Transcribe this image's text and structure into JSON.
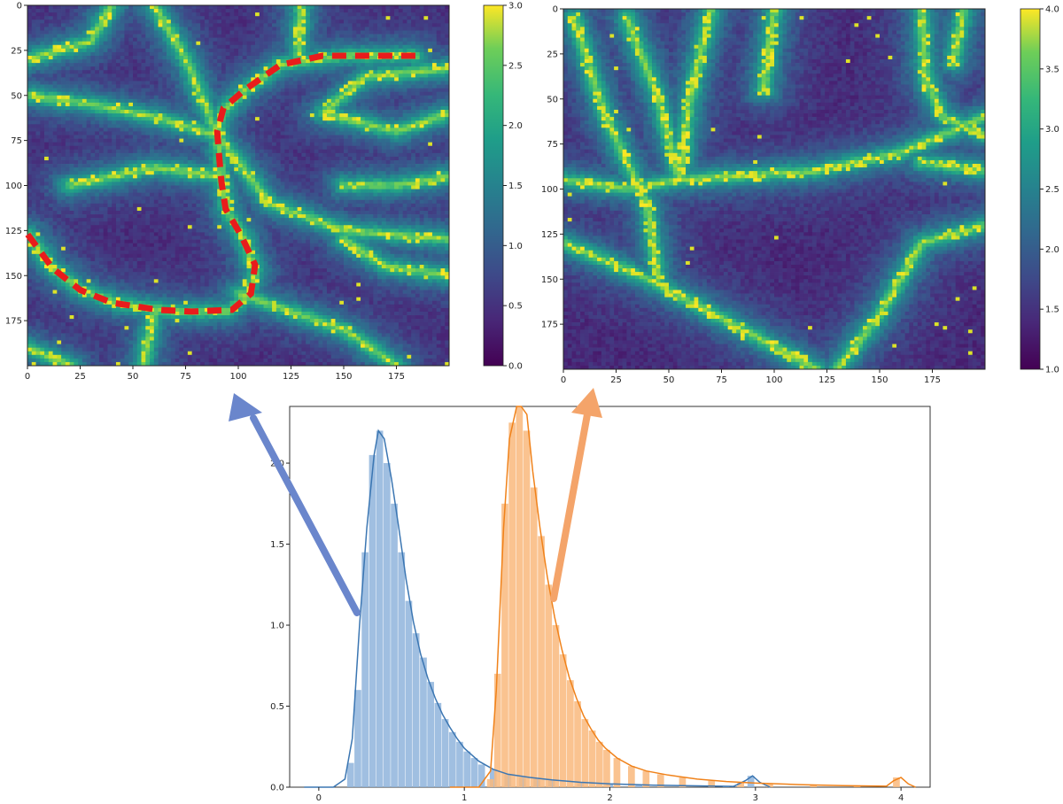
{
  "colors": {
    "blue_hist": "#8fb4dc",
    "blue_line": "#3b76b2",
    "orange_hist": "#f9b97c",
    "orange_line": "#f0821a",
    "arrow_blue": "#6a86cc",
    "arrow_orange": "#f4a46a",
    "path_red": "#e81c1c",
    "viridis_low": "#440154",
    "viridis_mid": "#21918c",
    "viridis_high": "#fde725"
  },
  "chart_data": [
    {
      "type": "heatmap",
      "colormap": "viridis",
      "x_ticks": [
        "0",
        "25",
        "50",
        "75",
        "100",
        "125",
        "150",
        "175"
      ],
      "y_ticks": [
        "0",
        "25",
        "50",
        "75",
        "100",
        "125",
        "150",
        "175"
      ],
      "xlim": [
        0,
        200
      ],
      "ylim": [
        0,
        200
      ],
      "colorbar": {
        "min": 0.0,
        "max": 3.0,
        "ticks": [
          "0.0",
          "0.5",
          "1.0",
          "1.5",
          "2.0",
          "2.5",
          "3.0"
        ]
      },
      "annotation": {
        "style": "red dashed path",
        "points": [
          [
            184,
            28
          ],
          [
            160,
            28
          ],
          [
            140,
            28
          ],
          [
            120,
            33
          ],
          [
            103,
            47
          ],
          [
            93,
            57
          ],
          [
            90,
            70
          ],
          [
            91,
            85
          ],
          [
            92,
            98
          ],
          [
            94,
            113
          ],
          [
            101,
            127
          ],
          [
            108,
            144
          ],
          [
            106,
            160
          ],
          [
            97,
            169
          ],
          [
            78,
            170
          ],
          [
            62,
            169
          ],
          [
            40,
            165
          ],
          [
            25,
            158
          ],
          [
            12,
            146
          ],
          [
            0,
            127
          ]
        ]
      }
    },
    {
      "type": "heatmap",
      "colormap": "viridis",
      "x_ticks": [
        "0",
        "25",
        "50",
        "75",
        "100",
        "125",
        "150",
        "175"
      ],
      "y_ticks": [
        "0",
        "25",
        "50",
        "75",
        "100",
        "125",
        "150",
        "175"
      ],
      "xlim": [
        0,
        200
      ],
      "ylim": [
        0,
        200
      ],
      "colorbar": {
        "min": 1.0,
        "max": 4.0,
        "ticks": [
          "1.0",
          "1.5",
          "2.0",
          "2.5",
          "3.0",
          "3.5",
          "4.0"
        ]
      }
    },
    {
      "type": "area",
      "subtype": "histogram with density curve",
      "x_ticks": [
        "0",
        "1",
        "2",
        "3",
        "4"
      ],
      "y_ticks": [
        "0.0",
        "0.5",
        "1.0",
        "1.5",
        "2.0"
      ],
      "xlim": [
        -0.2,
        4.2
      ],
      "ylim": [
        0,
        2.35
      ],
      "series": [
        {
          "color": "blue",
          "bins": [
            [
              0.22,
              0.15
            ],
            [
              0.27,
              0.6
            ],
            [
              0.32,
              1.45
            ],
            [
              0.37,
              2.05
            ],
            [
              0.42,
              2.2
            ],
            [
              0.47,
              2.0
            ],
            [
              0.52,
              1.75
            ],
            [
              0.57,
              1.45
            ],
            [
              0.62,
              1.15
            ],
            [
              0.67,
              0.95
            ],
            [
              0.72,
              0.8
            ],
            [
              0.77,
              0.65
            ],
            [
              0.82,
              0.52
            ],
            [
              0.87,
              0.42
            ],
            [
              0.92,
              0.34
            ],
            [
              0.97,
              0.28
            ],
            [
              1.02,
              0.22
            ],
            [
              1.07,
              0.18
            ],
            [
              1.12,
              0.14
            ],
            [
              1.2,
              0.11
            ],
            [
              1.3,
              0.08
            ],
            [
              1.4,
              0.06
            ],
            [
              1.5,
              0.05
            ],
            [
              1.6,
              0.04
            ],
            [
              1.8,
              0.03
            ],
            [
              2.0,
              0.02
            ],
            [
              2.2,
              0.015
            ],
            [
              2.5,
              0.01
            ],
            [
              2.8,
              0.005
            ],
            [
              2.97,
              0.07
            ]
          ],
          "density": [
            [
              -0.1,
              0.0
            ],
            [
              0.1,
              0.0
            ],
            [
              0.18,
              0.05
            ],
            [
              0.23,
              0.3
            ],
            [
              0.28,
              1.0
            ],
            [
              0.33,
              1.6
            ],
            [
              0.38,
              2.05
            ],
            [
              0.41,
              2.2
            ],
            [
              0.45,
              2.15
            ],
            [
              0.5,
              1.9
            ],
            [
              0.55,
              1.6
            ],
            [
              0.6,
              1.28
            ],
            [
              0.65,
              1.02
            ],
            [
              0.7,
              0.82
            ],
            [
              0.75,
              0.67
            ],
            [
              0.8,
              0.55
            ],
            [
              0.85,
              0.45
            ],
            [
              0.9,
              0.37
            ],
            [
              0.95,
              0.3
            ],
            [
              1.0,
              0.24
            ],
            [
              1.05,
              0.2
            ],
            [
              1.1,
              0.16
            ],
            [
              1.2,
              0.11
            ],
            [
              1.3,
              0.08
            ],
            [
              1.45,
              0.06
            ],
            [
              1.6,
              0.045
            ],
            [
              1.8,
              0.03
            ],
            [
              2.0,
              0.02
            ],
            [
              2.3,
              0.012
            ],
            [
              2.6,
              0.008
            ],
            [
              2.85,
              0.005
            ],
            [
              2.93,
              0.04
            ],
            [
              2.98,
              0.07
            ],
            [
              3.03,
              0.03
            ],
            [
              3.1,
              0.0
            ]
          ]
        },
        {
          "color": "orange",
          "bins": [
            [
              1.18,
              0.05
            ],
            [
              1.23,
              0.7
            ],
            [
              1.28,
              1.75
            ],
            [
              1.33,
              2.25
            ],
            [
              1.38,
              2.45
            ],
            [
              1.43,
              2.2
            ],
            [
              1.48,
              1.85
            ],
            [
              1.53,
              1.55
            ],
            [
              1.58,
              1.25
            ],
            [
              1.63,
              1.0
            ],
            [
              1.68,
              0.82
            ],
            [
              1.73,
              0.66
            ],
            [
              1.78,
              0.53
            ],
            [
              1.83,
              0.42
            ],
            [
              1.88,
              0.35
            ],
            [
              1.93,
              0.28
            ],
            [
              1.98,
              0.23
            ],
            [
              2.05,
              0.18
            ],
            [
              2.15,
              0.13
            ],
            [
              2.25,
              0.1
            ],
            [
              2.35,
              0.08
            ],
            [
              2.5,
              0.06
            ],
            [
              2.7,
              0.04
            ],
            [
              2.9,
              0.03
            ],
            [
              3.1,
              0.02
            ],
            [
              3.4,
              0.015
            ],
            [
              3.7,
              0.01
            ],
            [
              3.97,
              0.06
            ]
          ],
          "density": [
            [
              0.9,
              0.0
            ],
            [
              1.1,
              0.0
            ],
            [
              1.18,
              0.1
            ],
            [
              1.22,
              0.6
            ],
            [
              1.27,
              1.6
            ],
            [
              1.31,
              2.15
            ],
            [
              1.36,
              2.4
            ],
            [
              1.39,
              2.45
            ],
            [
              1.43,
              2.3
            ],
            [
              1.47,
              1.95
            ],
            [
              1.52,
              1.6
            ],
            [
              1.57,
              1.3
            ],
            [
              1.62,
              1.05
            ],
            [
              1.67,
              0.85
            ],
            [
              1.72,
              0.68
            ],
            [
              1.77,
              0.55
            ],
            [
              1.82,
              0.44
            ],
            [
              1.87,
              0.36
            ],
            [
              1.92,
              0.29
            ],
            [
              1.97,
              0.24
            ],
            [
              2.05,
              0.18
            ],
            [
              2.15,
              0.13
            ],
            [
              2.25,
              0.1
            ],
            [
              2.4,
              0.075
            ],
            [
              2.6,
              0.05
            ],
            [
              2.8,
              0.035
            ],
            [
              3.0,
              0.025
            ],
            [
              3.3,
              0.016
            ],
            [
              3.6,
              0.01
            ],
            [
              3.9,
              0.006
            ],
            [
              3.95,
              0.04
            ],
            [
              4.0,
              0.06
            ],
            [
              4.05,
              0.02
            ],
            [
              4.1,
              0.0
            ]
          ]
        }
      ]
    }
  ]
}
